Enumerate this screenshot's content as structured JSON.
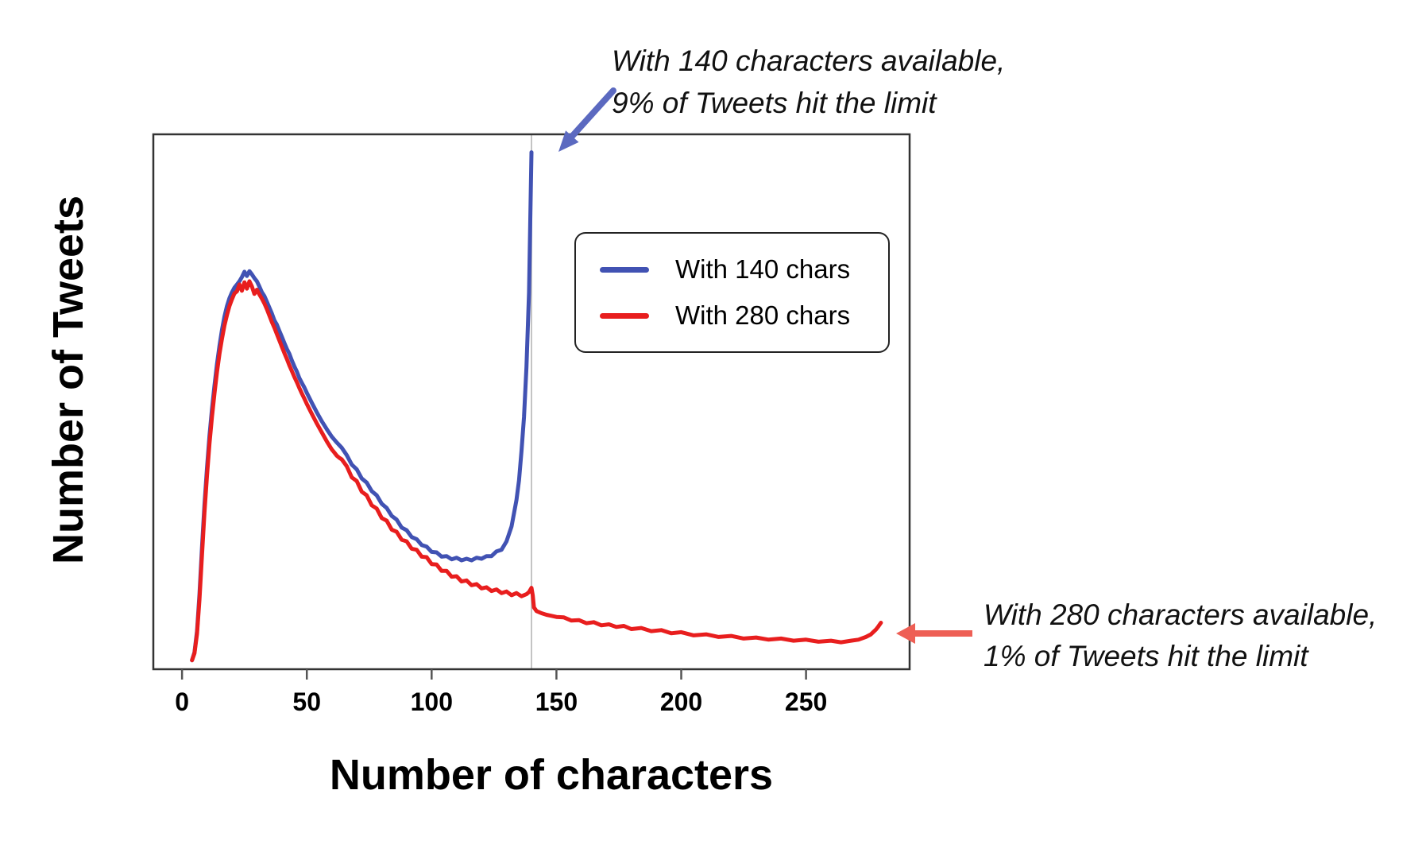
{
  "figure": {
    "background": "#ffffff"
  },
  "colors": {
    "series_140": "#4152b3",
    "series_280": "#e81e1e",
    "arrow_140": "#5b69c0",
    "arrow_280": "#ee5f55",
    "marker_line": "#c4c4c4",
    "frame": "#333333",
    "tick": "#555555"
  },
  "legend": {
    "items": [
      {
        "label": "With 140 chars",
        "color": "#4152b3"
      },
      {
        "label": "With 280 chars",
        "color": "#e81e1e"
      }
    ]
  },
  "annotations": {
    "limit140": {
      "line1": "With 140 characters available,",
      "line2": "9% of Tweets hit the limit"
    },
    "limit280": {
      "line1": "With 280 characters available,",
      "line2": "1% of Tweets hit the limit"
    }
  },
  "chart_data": {
    "type": "line",
    "title": "",
    "xlabel": "Number of characters",
    "ylabel": "Number of Tweets",
    "x_ticks": [
      0,
      50,
      100,
      150,
      200,
      250
    ],
    "x_tick_labels": [
      "0",
      "50",
      "100",
      "150",
      "200",
      "250"
    ],
    "xlim": [
      -11.5,
      291.5
    ],
    "ylim": [
      -0.012,
      1.0
    ],
    "y_axis_ticks": "none shown (unlabeled density axis)",
    "grid": "off",
    "legend_position": "upper middle-right inside plot",
    "marker_line_x": 140,
    "series": [
      {
        "name": "With 140 chars",
        "color": "#4152b3",
        "points": [
          [
            4,
            0.005
          ],
          [
            5,
            0.02
          ],
          [
            6,
            0.06
          ],
          [
            7,
            0.13
          ],
          [
            8,
            0.22
          ],
          [
            9,
            0.3
          ],
          [
            10,
            0.37
          ],
          [
            11,
            0.43
          ],
          [
            12,
            0.48
          ],
          [
            13,
            0.525
          ],
          [
            14,
            0.565
          ],
          [
            15,
            0.6
          ],
          [
            16,
            0.63
          ],
          [
            17,
            0.655
          ],
          [
            18,
            0.675
          ],
          [
            19,
            0.69
          ],
          [
            20,
            0.701
          ],
          [
            21,
            0.71
          ],
          [
            22,
            0.716
          ],
          [
            23,
            0.722
          ],
          [
            24,
            0.73
          ],
          [
            25,
            0.74
          ],
          [
            26,
            0.732
          ],
          [
            27,
            0.741
          ],
          [
            28,
            0.735
          ],
          [
            29,
            0.728
          ],
          [
            30,
            0.722
          ],
          [
            31,
            0.712
          ],
          [
            32,
            0.701
          ],
          [
            33,
            0.694
          ],
          [
            34,
            0.683
          ],
          [
            35,
            0.672
          ],
          [
            36,
            0.661
          ],
          [
            37,
            0.648
          ],
          [
            38,
            0.64
          ],
          [
            39,
            0.628
          ],
          [
            40,
            0.617
          ],
          [
            41,
            0.605
          ],
          [
            42,
            0.594
          ],
          [
            43,
            0.585
          ],
          [
            44,
            0.572
          ],
          [
            45,
            0.561
          ],
          [
            46,
            0.551
          ],
          [
            47,
            0.539
          ],
          [
            48,
            0.53
          ],
          [
            49,
            0.521
          ],
          [
            50,
            0.511
          ],
          [
            52,
            0.492
          ],
          [
            54,
            0.474
          ],
          [
            56,
            0.457
          ],
          [
            58,
            0.442
          ],
          [
            60,
            0.428
          ],
          [
            62,
            0.417
          ],
          [
            64,
            0.407
          ],
          [
            66,
            0.393
          ],
          [
            68,
            0.375
          ],
          [
            70,
            0.366
          ],
          [
            72,
            0.349
          ],
          [
            74,
            0.341
          ],
          [
            76,
            0.325
          ],
          [
            78,
            0.317
          ],
          [
            80,
            0.301
          ],
          [
            82,
            0.293
          ],
          [
            84,
            0.278
          ],
          [
            86,
            0.271
          ],
          [
            88,
            0.256
          ],
          [
            90,
            0.251
          ],
          [
            92,
            0.238
          ],
          [
            94,
            0.234
          ],
          [
            96,
            0.223
          ],
          [
            98,
            0.22
          ],
          [
            100,
            0.21
          ],
          [
            102,
            0.209
          ],
          [
            104,
            0.201
          ],
          [
            106,
            0.202
          ],
          [
            108,
            0.196
          ],
          [
            110,
            0.199
          ],
          [
            112,
            0.194
          ],
          [
            114,
            0.197
          ],
          [
            116,
            0.194
          ],
          [
            118,
            0.199
          ],
          [
            120,
            0.197
          ],
          [
            122,
            0.202
          ],
          [
            124,
            0.202
          ],
          [
            126,
            0.211
          ],
          [
            128,
            0.214
          ],
          [
            130,
            0.23
          ],
          [
            132,
            0.258
          ],
          [
            134,
            0.308
          ],
          [
            135,
            0.345
          ],
          [
            136,
            0.4
          ],
          [
            137,
            0.465
          ],
          [
            138,
            0.56
          ],
          [
            139,
            0.7
          ],
          [
            139.5,
            0.83
          ],
          [
            140,
            0.966
          ]
        ]
      },
      {
        "name": "With 280 chars",
        "color": "#e81e1e",
        "points": [
          [
            4,
            0.005
          ],
          [
            5,
            0.018
          ],
          [
            6,
            0.055
          ],
          [
            7,
            0.12
          ],
          [
            8,
            0.205
          ],
          [
            9,
            0.285
          ],
          [
            10,
            0.355
          ],
          [
            11,
            0.415
          ],
          [
            12,
            0.465
          ],
          [
            13,
            0.51
          ],
          [
            14,
            0.55
          ],
          [
            15,
            0.585
          ],
          [
            16,
            0.613
          ],
          [
            17,
            0.638
          ],
          [
            18,
            0.658
          ],
          [
            19,
            0.675
          ],
          [
            20,
            0.688
          ],
          [
            21,
            0.699
          ],
          [
            22,
            0.703
          ],
          [
            23,
            0.716
          ],
          [
            24,
            0.704
          ],
          [
            25,
            0.72
          ],
          [
            26,
            0.708
          ],
          [
            27,
            0.722
          ],
          [
            28,
            0.712
          ],
          [
            29,
            0.698
          ],
          [
            30,
            0.706
          ],
          [
            31,
            0.697
          ],
          [
            32,
            0.689
          ],
          [
            33,
            0.68
          ],
          [
            34,
            0.669
          ],
          [
            35,
            0.657
          ],
          [
            36,
            0.645
          ],
          [
            37,
            0.634
          ],
          [
            38,
            0.622
          ],
          [
            39,
            0.61
          ],
          [
            40,
            0.598
          ],
          [
            41,
            0.586
          ],
          [
            42,
            0.575
          ],
          [
            43,
            0.563
          ],
          [
            44,
            0.552
          ],
          [
            45,
            0.541
          ],
          [
            46,
            0.531
          ],
          [
            47,
            0.52
          ],
          [
            48,
            0.51
          ],
          [
            49,
            0.5
          ],
          [
            50,
            0.49
          ],
          [
            52,
            0.471
          ],
          [
            54,
            0.453
          ],
          [
            56,
            0.436
          ],
          [
            58,
            0.419
          ],
          [
            60,
            0.404
          ],
          [
            61,
            0.398
          ],
          [
            62,
            0.392
          ],
          [
            63,
            0.388
          ],
          [
            64,
            0.385
          ],
          [
            66,
            0.372
          ],
          [
            68,
            0.351
          ],
          [
            70,
            0.344
          ],
          [
            72,
            0.324
          ],
          [
            74,
            0.317
          ],
          [
            76,
            0.298
          ],
          [
            78,
            0.292
          ],
          [
            80,
            0.274
          ],
          [
            82,
            0.269
          ],
          [
            84,
            0.252
          ],
          [
            86,
            0.248
          ],
          [
            88,
            0.233
          ],
          [
            90,
            0.23
          ],
          [
            92,
            0.216
          ],
          [
            94,
            0.214
          ],
          [
            96,
            0.201
          ],
          [
            98,
            0.2
          ],
          [
            100,
            0.187
          ],
          [
            102,
            0.186
          ],
          [
            104,
            0.174
          ],
          [
            106,
            0.174
          ],
          [
            108,
            0.163
          ],
          [
            110,
            0.164
          ],
          [
            112,
            0.154
          ],
          [
            114,
            0.156
          ],
          [
            116,
            0.147
          ],
          [
            118,
            0.149
          ],
          [
            120,
            0.141
          ],
          [
            122,
            0.143
          ],
          [
            124,
            0.136
          ],
          [
            126,
            0.139
          ],
          [
            128,
            0.132
          ],
          [
            130,
            0.135
          ],
          [
            132,
            0.128
          ],
          [
            134,
            0.132
          ],
          [
            136,
            0.126
          ],
          [
            138,
            0.13
          ],
          [
            139,
            0.134
          ],
          [
            140,
            0.142
          ],
          [
            140.5,
            0.128
          ],
          [
            141,
            0.105
          ],
          [
            142,
            0.098
          ],
          [
            144,
            0.094
          ],
          [
            146,
            0.091
          ],
          [
            148,
            0.089
          ],
          [
            150,
            0.087
          ],
          [
            153,
            0.086
          ],
          [
            156,
            0.08
          ],
          [
            159,
            0.081
          ],
          [
            162,
            0.075
          ],
          [
            165,
            0.077
          ],
          [
            168,
            0.071
          ],
          [
            171,
            0.073
          ],
          [
            174,
            0.068
          ],
          [
            177,
            0.07
          ],
          [
            180,
            0.064
          ],
          [
            184,
            0.066
          ],
          [
            188,
            0.06
          ],
          [
            192,
            0.062
          ],
          [
            196,
            0.056
          ],
          [
            200,
            0.058
          ],
          [
            205,
            0.052
          ],
          [
            210,
            0.054
          ],
          [
            215,
            0.049
          ],
          [
            220,
            0.051
          ],
          [
            225,
            0.046
          ],
          [
            230,
            0.048
          ],
          [
            235,
            0.044
          ],
          [
            240,
            0.046
          ],
          [
            245,
            0.042
          ],
          [
            250,
            0.044
          ],
          [
            255,
            0.04
          ],
          [
            260,
            0.042
          ],
          [
            264,
            0.039
          ],
          [
            268,
            0.042
          ],
          [
            271,
            0.044
          ],
          [
            274,
            0.049
          ],
          [
            276,
            0.054
          ],
          [
            278,
            0.063
          ],
          [
            279,
            0.069
          ],
          [
            280,
            0.076
          ]
        ]
      }
    ]
  }
}
